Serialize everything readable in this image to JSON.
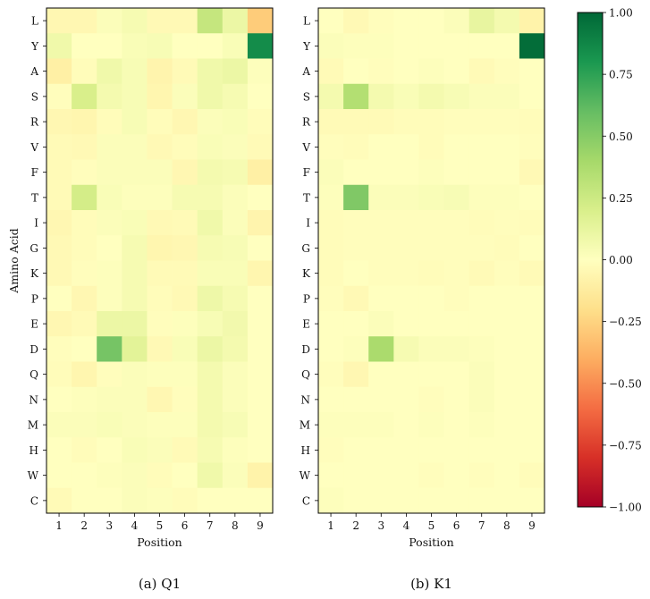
{
  "chart_data": [
    {
      "type": "heatmap",
      "caption": "(a) Q1",
      "xlabel": "Position",
      "ylabel": "Amino Acid",
      "x": [
        "1",
        "2",
        "3",
        "4",
        "5",
        "6",
        "7",
        "8",
        "9"
      ],
      "y": [
        "L",
        "Y",
        "A",
        "S",
        "R",
        "V",
        "F",
        "T",
        "I",
        "G",
        "K",
        "P",
        "E",
        "D",
        "Q",
        "N",
        "M",
        "H",
        "W",
        "C"
      ],
      "z": [
        [
          -0.05,
          -0.05,
          0.02,
          0.05,
          -0.04,
          -0.04,
          0.28,
          0.1,
          -0.28
        ],
        [
          0.08,
          0.0,
          0.0,
          0.03,
          0.04,
          0.0,
          0.0,
          0.03,
          0.85
        ],
        [
          -0.1,
          -0.02,
          0.08,
          0.04,
          -0.07,
          -0.03,
          0.08,
          0.1,
          0.01
        ],
        [
          -0.01,
          0.2,
          0.06,
          0.04,
          -0.06,
          0.02,
          0.08,
          0.05,
          0.0
        ],
        [
          -0.05,
          -0.06,
          -0.02,
          0.04,
          -0.02,
          -0.05,
          0.02,
          0.03,
          -0.02
        ],
        [
          -0.03,
          -0.04,
          0.02,
          0.02,
          -0.04,
          -0.02,
          0.03,
          0.02,
          -0.03
        ],
        [
          -0.03,
          -0.01,
          0.02,
          0.02,
          0.02,
          -0.05,
          0.06,
          0.05,
          -0.1
        ],
        [
          -0.03,
          0.22,
          0.03,
          0.01,
          0.01,
          0.05,
          0.05,
          0.02,
          0.0
        ],
        [
          -0.05,
          -0.02,
          0.02,
          0.03,
          -0.04,
          -0.03,
          0.08,
          0.02,
          -0.07
        ],
        [
          -0.04,
          -0.02,
          0.0,
          0.05,
          -0.06,
          -0.05,
          0.05,
          0.04,
          0.0
        ],
        [
          -0.04,
          -0.01,
          0.01,
          0.05,
          -0.03,
          -0.03,
          0.03,
          0.03,
          -0.06
        ],
        [
          0.0,
          -0.05,
          0.01,
          0.05,
          -0.02,
          -0.04,
          0.09,
          0.05,
          0.0
        ],
        [
          -0.05,
          -0.03,
          0.1,
          0.1,
          -0.01,
          0.01,
          0.04,
          0.07,
          0.0
        ],
        [
          -0.01,
          0.0,
          0.55,
          0.15,
          -0.04,
          0.03,
          0.1,
          0.06,
          0.0
        ],
        [
          -0.02,
          -0.06,
          -0.01,
          0.02,
          0.01,
          0.01,
          0.06,
          0.02,
          0.0
        ],
        [
          0.0,
          0.01,
          0.02,
          0.02,
          -0.05,
          -0.01,
          0.06,
          0.02,
          0.0
        ],
        [
          0.02,
          0.02,
          0.03,
          0.02,
          0.01,
          0.01,
          0.06,
          0.04,
          0.0
        ],
        [
          0.0,
          -0.02,
          0.0,
          0.03,
          0.02,
          -0.03,
          0.05,
          0.01,
          0.0
        ],
        [
          0.0,
          0.0,
          0.01,
          0.02,
          -0.02,
          0.0,
          0.08,
          0.02,
          -0.08
        ],
        [
          -0.03,
          0.0,
          0.0,
          0.02,
          0.01,
          -0.02,
          0.0,
          0.0,
          0.0
        ]
      ]
    },
    {
      "type": "heatmap",
      "caption": "(b) K1",
      "xlabel": "Position",
      "ylabel": "",
      "x": [
        "1",
        "2",
        "3",
        "4",
        "5",
        "6",
        "7",
        "8",
        "9"
      ],
      "y": [
        "L",
        "Y",
        "A",
        "S",
        "R",
        "V",
        "F",
        "T",
        "I",
        "G",
        "K",
        "P",
        "E",
        "D",
        "Q",
        "N",
        "M",
        "H",
        "W",
        "C"
      ],
      "z": [
        [
          0.0,
          -0.04,
          -0.01,
          0.0,
          0.0,
          0.02,
          0.12,
          0.06,
          -0.08
        ],
        [
          0.02,
          0.01,
          0.01,
          0.0,
          0.0,
          0.0,
          0.0,
          0.0,
          0.98
        ],
        [
          -0.03,
          0.0,
          -0.01,
          0.0,
          0.01,
          0.0,
          -0.03,
          -0.01,
          0.0
        ],
        [
          0.06,
          0.35,
          0.06,
          0.03,
          0.06,
          0.04,
          0.02,
          0.02,
          0.0
        ],
        [
          -0.03,
          -0.03,
          -0.03,
          -0.02,
          -0.02,
          -0.01,
          -0.01,
          -0.01,
          -0.02
        ],
        [
          -0.01,
          -0.02,
          0.0,
          0.0,
          -0.02,
          0.0,
          0.0,
          0.0,
          -0.01
        ],
        [
          0.02,
          0.0,
          0.0,
          0.0,
          0.01,
          0.0,
          0.0,
          0.0,
          -0.04
        ],
        [
          0.01,
          0.52,
          0.02,
          0.02,
          0.03,
          0.04,
          0.01,
          0.01,
          0.0
        ],
        [
          -0.02,
          -0.01,
          -0.01,
          -0.01,
          -0.01,
          -0.01,
          -0.02,
          -0.01,
          -0.02
        ],
        [
          -0.02,
          -0.01,
          -0.01,
          -0.01,
          -0.01,
          -0.01,
          -0.01,
          -0.02,
          0.0
        ],
        [
          -0.02,
          0.0,
          -0.01,
          -0.01,
          -0.02,
          -0.01,
          -0.03,
          -0.01,
          -0.03
        ],
        [
          -0.01,
          -0.04,
          0.0,
          0.0,
          0.0,
          -0.01,
          0.0,
          0.0,
          0.0
        ],
        [
          0.0,
          0.0,
          0.02,
          0.0,
          0.0,
          0.0,
          0.0,
          0.0,
          0.0
        ],
        [
          0.0,
          0.01,
          0.38,
          0.05,
          0.02,
          0.02,
          0.01,
          0.0,
          0.0
        ],
        [
          -0.01,
          -0.05,
          0.0,
          0.0,
          0.0,
          0.0,
          0.02,
          0.0,
          0.0
        ],
        [
          0.0,
          0.0,
          0.0,
          0.0,
          -0.01,
          0.0,
          0.02,
          0.0,
          0.0
        ],
        [
          0.01,
          0.01,
          0.01,
          0.0,
          0.01,
          0.0,
          0.01,
          0.0,
          0.0
        ],
        [
          -0.01,
          0.0,
          0.0,
          0.0,
          0.0,
          0.0,
          0.0,
          0.0,
          0.0
        ],
        [
          0.0,
          0.0,
          0.0,
          0.0,
          -0.01,
          0.0,
          -0.01,
          0.0,
          -0.02
        ],
        [
          0.01,
          0.0,
          0.0,
          0.0,
          0.0,
          0.0,
          0.0,
          0.0,
          0.0
        ]
      ]
    }
  ],
  "colorbar": {
    "colormap": "RdYlGn",
    "vmin": -1.0,
    "vmax": 1.0,
    "ticks": [
      "1.00",
      "0.75",
      "0.50",
      "0.25",
      "0.00",
      "−0.25",
      "−0.50",
      "−0.75",
      "−1.00"
    ]
  },
  "colormap_stops": [
    "#a50026",
    "#d73027",
    "#f46d43",
    "#fdae61",
    "#fee08b",
    "#ffffbf",
    "#d9ef8b",
    "#a6d96a",
    "#66bd63",
    "#1a9850",
    "#006837"
  ]
}
